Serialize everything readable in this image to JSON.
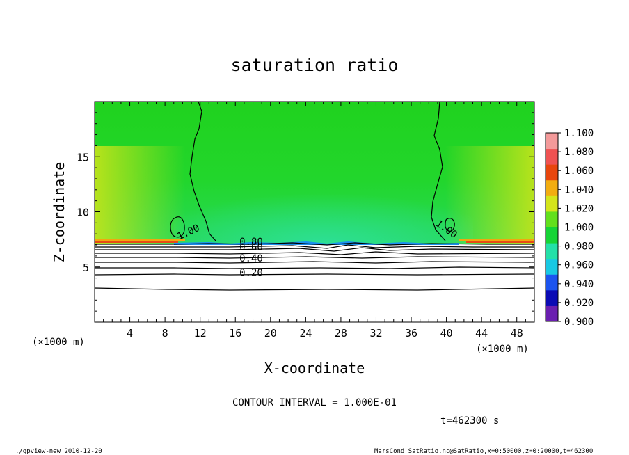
{
  "chart_data": {
    "type": "heatmap",
    "title": "saturation ratio",
    "xlabel": "X-coordinate",
    "ylabel": "Z-coordinate",
    "xlim": [
      0,
      50
    ],
    "ylim": [
      0,
      20
    ],
    "x_ticks": [
      4,
      8,
      12,
      16,
      20,
      24,
      28,
      32,
      36,
      40,
      44,
      48
    ],
    "y_ticks": [
      5,
      10,
      15
    ],
    "x_unit_left": "(×1000 m)",
    "x_unit_right": "(×1000 m)",
    "colorbar": {
      "levels": [
        0.9,
        0.92,
        0.94,
        0.96,
        0.98,
        1.0,
        1.02,
        1.04,
        1.06,
        1.08,
        1.1
      ],
      "labels": [
        "1.100",
        "1.080",
        "1.060",
        "1.040",
        "1.020",
        "1.000",
        "0.980",
        "0.960",
        "0.940",
        "0.920",
        "0.900"
      ],
      "colors": [
        "#6a1fb0",
        "#0b0bb4",
        "#1c54ef",
        "#18c9e3",
        "#23e0a8",
        "#16d436",
        "#62e01c",
        "#d4e51a",
        "#f2ad10",
        "#e8460d",
        "#ef5252",
        "#f39a9a"
      ]
    },
    "contour_labels": [
      {
        "text": "1.00",
        "x": 10.8,
        "z": 7.9,
        "angle": -25
      },
      {
        "text": "1.00",
        "x": 39.8,
        "z": 8.2,
        "angle": 35
      },
      {
        "text": "0.80",
        "x": 17.8,
        "z": 7.0,
        "angle": 0
      },
      {
        "text": "0.60",
        "x": 17.8,
        "z": 6.5,
        "angle": 0
      },
      {
        "text": "0.40",
        "x": 17.8,
        "z": 5.5,
        "angle": 0
      },
      {
        "text": "0.20",
        "x": 17.8,
        "z": 4.2,
        "angle": 0
      }
    ],
    "contour_interval": "CONTOUR INTERVAL = 1.000E-01",
    "time_label": "t=462300 s"
  },
  "footer": {
    "left": "./gpview-new   2010-12-20",
    "right": "MarsCond_SatRatio.nc@SatRatio,x=0:50000,z=0:20000,t=462300"
  }
}
